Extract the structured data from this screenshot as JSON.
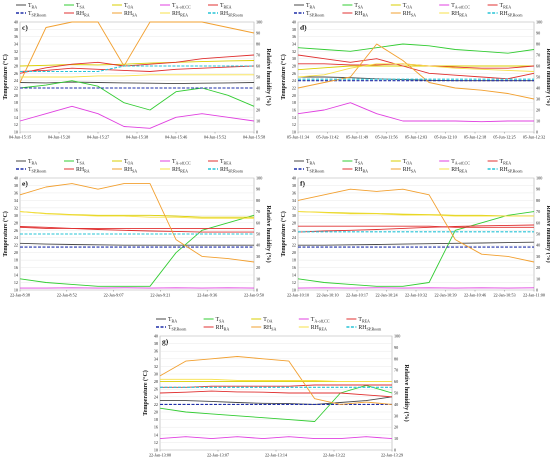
{
  "legend_items": [
    {
      "label": "T",
      "sub": "RA",
      "color": "#4a4a4a",
      "dash": ""
    },
    {
      "label": "T",
      "sub": "SA",
      "color": "#33cc33",
      "dash": ""
    },
    {
      "label": "T",
      "sub": "OA",
      "color": "#d9cf00",
      "dash": ""
    },
    {
      "label": "T",
      "sub": "A-off,CC",
      "color": "#e040e0",
      "dash": ""
    },
    {
      "label": "T",
      "sub": "REA",
      "color": "#e03030",
      "dash": ""
    },
    {
      "label": "T",
      "sub": "SP,Room",
      "color": "#1f2fa8",
      "dash": "3,1.5"
    },
    {
      "label": "RH",
      "sub": "RA",
      "color": "#e03030",
      "dash": ""
    },
    {
      "label": "RH",
      "sub": "SA",
      "color": "#f2a030",
      "dash": ""
    },
    {
      "label": "RH",
      "sub": "REA",
      "color": "#f7e04a",
      "dash": ""
    },
    {
      "label": "RH",
      "sub": "SP,Room",
      "color": "#27c4d6",
      "dash": "3,1.5"
    }
  ],
  "axis_titles": {
    "left": "Temperature (°C)",
    "right": "Relative humidity (%)"
  },
  "chart_data": [
    {
      "type": "line",
      "panel": "c)",
      "ylim": [
        10,
        40
      ],
      "y2lim": [
        0,
        100
      ],
      "yticks": [
        "10",
        "12",
        "14",
        "16",
        "18",
        "20",
        "22",
        "24",
        "26",
        "28",
        "30",
        "32",
        "34",
        "36",
        "38",
        "40"
      ],
      "y2ticks": [
        "0",
        "10",
        "20",
        "30",
        "40",
        "50",
        "60",
        "70",
        "80",
        "90",
        "100"
      ],
      "xticks": [
        "04-Jun-15:15",
        "04-Jun-15:20",
        "04-Jun-15:27",
        "04-Jun-15:38",
        "04-Jun-15:46",
        "04-Jun-15:52",
        "04-Jun-15:58"
      ],
      "series": [
        {
          "key": "T_RA",
          "axis": "left",
          "values": [
            23.5,
            23.4,
            23.6,
            23.5,
            23.4,
            23.3,
            23.2,
            23.3,
            23.4,
            23.5
          ]
        },
        {
          "key": "T_SA",
          "axis": "left",
          "values": [
            22,
            22.8,
            24,
            22.5,
            18,
            16,
            21,
            22,
            20,
            17
          ]
        },
        {
          "key": "T_OA",
          "axis": "left",
          "values": [
            28,
            28.2,
            28.4,
            28.3,
            28.5,
            28.8,
            29,
            29.2,
            29.4,
            29.5
          ]
        },
        {
          "key": "T_A-off,CC",
          "axis": "left",
          "values": [
            13,
            15,
            17,
            15,
            11.5,
            11,
            14,
            15,
            14,
            13
          ]
        },
        {
          "key": "T_REA",
          "axis": "left",
          "values": [
            26,
            27.5,
            28.5,
            29,
            28,
            28.5,
            29,
            30,
            30.5,
            31
          ]
        },
        {
          "key": "T_SP,Room",
          "axis": "left",
          "values": [
            22,
            22,
            22,
            22,
            22,
            22,
            22,
            22,
            22,
            22
          ]
        },
        {
          "key": "RH_RA",
          "axis": "right",
          "values": [
            55,
            56,
            58,
            57,
            56,
            55,
            57,
            58,
            59,
            60
          ]
        },
        {
          "key": "RH_SA",
          "axis": "right",
          "values": [
            45,
            95,
            100,
            100,
            60,
            100,
            100,
            100,
            95,
            90
          ]
        },
        {
          "key": "RH_REA",
          "axis": "right",
          "values": [
            50,
            50,
            50,
            51,
            51,
            52,
            52,
            52,
            52,
            52
          ]
        },
        {
          "key": "RH_SP,Room",
          "axis": "right",
          "values": [
            55,
            55,
            55,
            55,
            60,
            60,
            60,
            60,
            60,
            60
          ]
        }
      ]
    },
    {
      "type": "line",
      "panel": "d)",
      "ylim": [
        10,
        40
      ],
      "y2lim": [
        0,
        100
      ],
      "yticks": [
        "10",
        "12",
        "14",
        "16",
        "18",
        "20",
        "22",
        "24",
        "26",
        "28",
        "30",
        "32",
        "34",
        "36",
        "38",
        "40"
      ],
      "y2ticks": [
        "0",
        "10",
        "20",
        "30",
        "40",
        "50",
        "60",
        "70",
        "80",
        "90",
        "100"
      ],
      "xticks": [
        "05-Jun-11:34",
        "05-Jun-11:42",
        "05-Jun-11:49",
        "05-Jun-11:56",
        "05-Jun-12:03",
        "05-Jun-12:10",
        "05-Jun-12:18",
        "05-Jun-12:25",
        "05-Jun-12:32"
      ],
      "series": [
        {
          "key": "T_RA",
          "axis": "left",
          "values": [
            25,
            25,
            24.8,
            24.5,
            24.3,
            24.1,
            24,
            24,
            24,
            24
          ]
        },
        {
          "key": "T_SA",
          "axis": "left",
          "values": [
            33,
            32.5,
            32,
            33,
            34,
            33.5,
            32.5,
            32,
            31.5,
            32.5
          ]
        },
        {
          "key": "T_OA",
          "axis": "left",
          "values": [
            27,
            27.5,
            28,
            28,
            28,
            28,
            28,
            28,
            28,
            28
          ]
        },
        {
          "key": "T_A-off,CC",
          "axis": "left",
          "values": [
            15,
            16,
            18,
            15,
            13,
            13,
            13,
            12.8,
            13,
            13
          ]
        },
        {
          "key": "T_REA",
          "axis": "left",
          "values": [
            31,
            30,
            29,
            30,
            28,
            26,
            25.5,
            25,
            24.5,
            26
          ]
        },
        {
          "key": "T_SP,Room",
          "axis": "left",
          "values": [
            24,
            24,
            24,
            24,
            24,
            24,
            24,
            24,
            24,
            24
          ]
        },
        {
          "key": "RH_RA",
          "axis": "right",
          "values": [
            62,
            62,
            61,
            61,
            62,
            60,
            59,
            58,
            58,
            60
          ]
        },
        {
          "key": "RH_SA",
          "axis": "right",
          "values": [
            40,
            45,
            50,
            80,
            65,
            45,
            40,
            38,
            35,
            30
          ]
        },
        {
          "key": "RH_REA",
          "axis": "right",
          "values": [
            50,
            52,
            58,
            62,
            62,
            60,
            58,
            57,
            56,
            55
          ]
        },
        {
          "key": "RH_SP,Room",
          "axis": "right",
          "values": [
            48,
            48,
            48,
            48,
            48,
            48,
            48,
            48,
            48,
            48
          ]
        }
      ]
    },
    {
      "type": "line",
      "panel": "e)",
      "ylim": [
        10,
        40
      ],
      "y2lim": [
        0,
        100
      ],
      "yticks": [
        "10",
        "12",
        "14",
        "16",
        "18",
        "20",
        "22",
        "24",
        "26",
        "28",
        "30",
        "32",
        "34",
        "36",
        "38",
        "40"
      ],
      "y2ticks": [
        "0",
        "10",
        "20",
        "30",
        "40",
        "50",
        "60",
        "70",
        "80",
        "90",
        "100"
      ],
      "xticks": [
        "22-Jan-8:38",
        "22-Jan-8:52",
        "22-Jan-9:07",
        "22-Jan-9:21",
        "22-Jan-9:36",
        "22-Jan-9:50"
      ],
      "series": [
        {
          "key": "T_RA",
          "axis": "left",
          "values": [
            22.5,
            22.3,
            22.2,
            22.1,
            22,
            22,
            22,
            22,
            22,
            22
          ]
        },
        {
          "key": "T_SA",
          "axis": "left",
          "values": [
            13,
            12,
            11.5,
            11,
            11,
            11,
            20,
            26,
            28,
            30
          ]
        },
        {
          "key": "T_OA",
          "axis": "left",
          "values": [
            31,
            30.5,
            30.2,
            30,
            30,
            30,
            29.8,
            29.5,
            29.5,
            29.5
          ]
        },
        {
          "key": "T_A-off,CC",
          "axis": "left",
          "values": [
            10.5,
            10.5,
            10.6,
            10.5,
            10.6,
            10.5,
            10.6,
            10.5,
            10.6,
            10.5
          ]
        },
        {
          "key": "T_REA",
          "axis": "left",
          "values": [
            27,
            26.8,
            26.5,
            26.2,
            26,
            25.8,
            25.7,
            25.5,
            25.5,
            25.5
          ]
        },
        {
          "key": "T_SP,Room",
          "axis": "left",
          "values": [
            21.5,
            21.5,
            21.5,
            21.5,
            21.5,
            21.5,
            21.5,
            21.5,
            21.5,
            21.5
          ]
        },
        {
          "key": "RH_RA",
          "axis": "right",
          "values": [
            56,
            55,
            55,
            55,
            55,
            55,
            55,
            55,
            55,
            55
          ]
        },
        {
          "key": "RH_SA",
          "axis": "right",
          "values": [
            85,
            92,
            95,
            90,
            95,
            95,
            45,
            30,
            28,
            25
          ]
        },
        {
          "key": "RH_REA",
          "axis": "right",
          "values": [
            70,
            68,
            67,
            66,
            66,
            65,
            65,
            64,
            64,
            64
          ]
        },
        {
          "key": "RH_SP,Room",
          "axis": "right",
          "values": [
            50,
            50,
            50,
            50,
            50,
            50,
            50,
            50,
            50,
            50
          ]
        }
      ]
    },
    {
      "type": "line",
      "panel": "f)",
      "ylim": [
        10,
        40
      ],
      "y2lim": [
        0,
        100
      ],
      "yticks": [
        "10",
        "12",
        "14",
        "16",
        "18",
        "20",
        "22",
        "24",
        "26",
        "28",
        "30",
        "32",
        "34",
        "36",
        "38",
        "40"
      ],
      "y2ticks": [
        "0",
        "10",
        "20",
        "30",
        "40",
        "50",
        "60",
        "70",
        "80",
        "90",
        "100"
      ],
      "xticks": [
        "22-Jan-10:10",
        "22-Jan-10:10",
        "22-Jan-10:17",
        "22-Jan-10:24",
        "22-Jan-10:32",
        "22-Jan-10:39",
        "22-Jan-10:46",
        "22-Jan-10:53",
        "22-Jan-11:00"
      ],
      "series": [
        {
          "key": "T_RA",
          "axis": "left",
          "values": [
            22,
            22,
            22.1,
            22.2,
            22.3,
            22.4,
            22.5,
            22.6,
            22.7,
            22.8
          ]
        },
        {
          "key": "T_SA",
          "axis": "left",
          "values": [
            13,
            12,
            11.5,
            11,
            11,
            12,
            26,
            28,
            30,
            31
          ]
        },
        {
          "key": "T_OA",
          "axis": "left",
          "values": [
            31,
            30.8,
            30.6,
            30.5,
            30.3,
            30.2,
            30,
            30,
            29.8,
            29.8
          ]
        },
        {
          "key": "T_A-off,CC",
          "axis": "left",
          "values": [
            10.5,
            10.6,
            10.5,
            10.6,
            10.5,
            10.6,
            10.5,
            10.6,
            10.5,
            10.6
          ]
        },
        {
          "key": "T_REA",
          "axis": "left",
          "values": [
            25.5,
            25.8,
            26,
            26.2,
            26.5,
            26.8,
            27,
            27.2,
            27.3,
            27.4
          ]
        },
        {
          "key": "T_SP,Room",
          "axis": "left",
          "values": [
            21.5,
            21.5,
            21.5,
            21.5,
            21.5,
            21.5,
            21.5,
            21.5,
            21.5,
            21.5
          ]
        },
        {
          "key": "RH_RA",
          "axis": "right",
          "values": [
            57,
            57,
            57,
            57,
            57,
            57,
            56,
            56,
            56,
            56
          ]
        },
        {
          "key": "RH_SA",
          "axis": "right",
          "values": [
            80,
            85,
            90,
            88,
            90,
            85,
            45,
            32,
            30,
            25
          ]
        },
        {
          "key": "RH_REA",
          "axis": "right",
          "values": [
            70,
            69,
            68,
            68,
            67,
            67,
            66,
            66,
            66,
            66
          ]
        },
        {
          "key": "RH_SP,Room",
          "axis": "right",
          "values": [
            52,
            52,
            52,
            52,
            52,
            52,
            52,
            52,
            52,
            52
          ]
        }
      ]
    },
    {
      "type": "line",
      "panel": "g)",
      "ylim": [
        10,
        40
      ],
      "y2lim": [
        0,
        100
      ],
      "yticks": [
        "10",
        "12",
        "14",
        "16",
        "18",
        "20",
        "22",
        "24",
        "26",
        "28",
        "30",
        "32",
        "34",
        "36",
        "38",
        "40"
      ],
      "y2ticks": [
        "0",
        "10",
        "20",
        "30",
        "40",
        "50",
        "60",
        "70",
        "80",
        "90",
        "100"
      ],
      "xticks": [
        "22-Jan-13:00",
        "22-Jan-13:07",
        "22-Jan-13:14",
        "22-Jan-13:22",
        "22-Jan-13:29"
      ],
      "series": [
        {
          "key": "T_RA",
          "axis": "left",
          "values": [
            23,
            23,
            22.8,
            22.5,
            22.3,
            22.2,
            22,
            22.5,
            23,
            24
          ]
        },
        {
          "key": "T_SA",
          "axis": "left",
          "values": [
            21,
            20,
            19.5,
            19,
            18.5,
            18,
            17.5,
            25,
            27,
            25
          ]
        },
        {
          "key": "T_OA",
          "axis": "left",
          "values": [
            28,
            28,
            28,
            28,
            28,
            28,
            28,
            28,
            28,
            28
          ]
        },
        {
          "key": "T_A-off,CC",
          "axis": "left",
          "values": [
            13,
            13.5,
            13,
            13.5,
            13,
            13.5,
            13,
            13,
            13.5,
            13
          ]
        },
        {
          "key": "T_REA",
          "axis": "left",
          "values": [
            25,
            25.2,
            25.5,
            25.3,
            25.2,
            25,
            25,
            25,
            24.5,
            24
          ]
        },
        {
          "key": "T_SP,Room",
          "axis": "left",
          "values": [
            22,
            22,
            22,
            22,
            22,
            22,
            22,
            22,
            22,
            22
          ]
        },
        {
          "key": "RH_RA",
          "axis": "right",
          "values": [
            55,
            55,
            56,
            56,
            56,
            56,
            57,
            57,
            57,
            57
          ]
        },
        {
          "key": "RH_SA",
          "axis": "right",
          "values": [
            65,
            78,
            80,
            82,
            80,
            78,
            45,
            40,
            42,
            40
          ]
        },
        {
          "key": "RH_REA",
          "axis": "right",
          "values": [
            62,
            62,
            62,
            61,
            61,
            61,
            61,
            60,
            60,
            60
          ]
        },
        {
          "key": "RH_SP,Room",
          "axis": "right",
          "values": [
            55,
            55,
            55,
            55,
            55,
            55,
            55,
            55,
            55,
            55
          ]
        }
      ]
    }
  ]
}
